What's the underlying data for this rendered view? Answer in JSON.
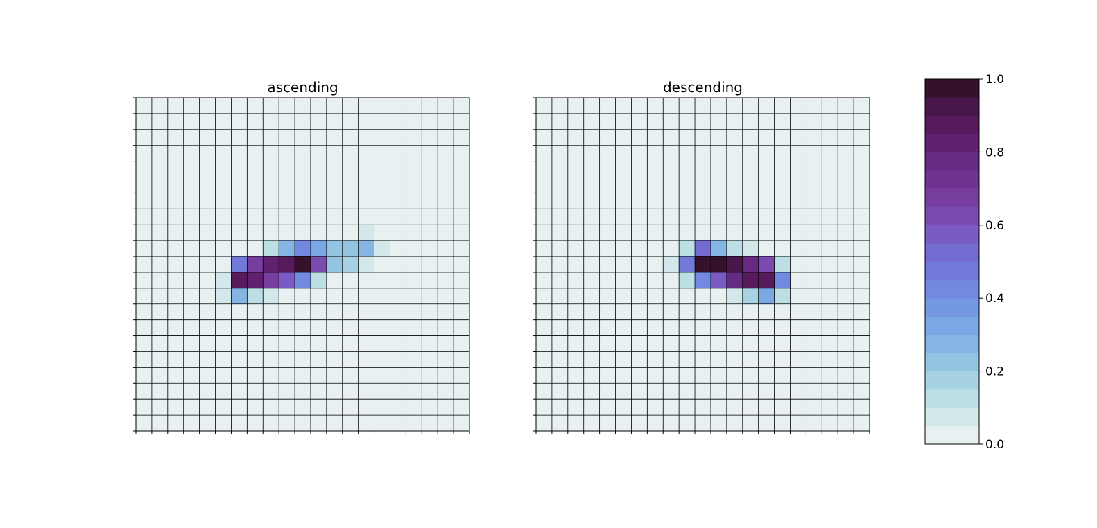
{
  "chart_data": [
    {
      "type": "heatmap",
      "title": "ascending",
      "rows": 21,
      "cols": 21,
      "vmin": 0,
      "vmax": 1,
      "cells": [
        {
          "r": 8,
          "c": 14,
          "v": 0.08
        },
        {
          "r": 9,
          "c": 8,
          "v": 0.12
        },
        {
          "r": 9,
          "c": 9,
          "v": 0.25
        },
        {
          "r": 9,
          "c": 10,
          "v": 0.42
        },
        {
          "r": 9,
          "c": 11,
          "v": 0.33
        },
        {
          "r": 9,
          "c": 12,
          "v": 0.22
        },
        {
          "r": 9,
          "c": 13,
          "v": 0.22
        },
        {
          "r": 9,
          "c": 14,
          "v": 0.25
        },
        {
          "r": 9,
          "c": 15,
          "v": 0.08
        },
        {
          "r": 10,
          "c": 6,
          "v": 0.45
        },
        {
          "r": 10,
          "c": 7,
          "v": 0.65
        },
        {
          "r": 10,
          "c": 8,
          "v": 0.8
        },
        {
          "r": 10,
          "c": 9,
          "v": 0.85
        },
        {
          "r": 10,
          "c": 10,
          "v": 1.0
        },
        {
          "r": 10,
          "c": 11,
          "v": 0.6
        },
        {
          "r": 10,
          "c": 12,
          "v": 0.22
        },
        {
          "r": 10,
          "c": 13,
          "v": 0.15
        },
        {
          "r": 10,
          "c": 14,
          "v": 0.08
        },
        {
          "r": 11,
          "c": 5,
          "v": 0.05
        },
        {
          "r": 11,
          "c": 6,
          "v": 0.85
        },
        {
          "r": 11,
          "c": 7,
          "v": 0.82
        },
        {
          "r": 11,
          "c": 8,
          "v": 0.68
        },
        {
          "r": 11,
          "c": 9,
          "v": 0.55
        },
        {
          "r": 11,
          "c": 10,
          "v": 0.42
        },
        {
          "r": 11,
          "c": 11,
          "v": 0.12
        },
        {
          "r": 12,
          "c": 5,
          "v": 0.05
        },
        {
          "r": 12,
          "c": 6,
          "v": 0.25
        },
        {
          "r": 12,
          "c": 7,
          "v": 0.12
        },
        {
          "r": 12,
          "c": 8,
          "v": 0.05
        }
      ]
    },
    {
      "type": "heatmap",
      "title": "descending",
      "rows": 21,
      "cols": 21,
      "vmin": 0,
      "vmax": 1,
      "cells": [
        {
          "r": 9,
          "c": 9,
          "v": 0.12
        },
        {
          "r": 9,
          "c": 10,
          "v": 0.5
        },
        {
          "r": 9,
          "c": 11,
          "v": 0.25
        },
        {
          "r": 9,
          "c": 12,
          "v": 0.12
        },
        {
          "r": 9,
          "c": 13,
          "v": 0.05
        },
        {
          "r": 10,
          "c": 8,
          "v": 0.05
        },
        {
          "r": 10,
          "c": 9,
          "v": 0.45
        },
        {
          "r": 10,
          "c": 10,
          "v": 1.0
        },
        {
          "r": 10,
          "c": 11,
          "v": 1.0
        },
        {
          "r": 10,
          "c": 12,
          "v": 0.92
        },
        {
          "r": 10,
          "c": 13,
          "v": 0.78
        },
        {
          "r": 10,
          "c": 14,
          "v": 0.6
        },
        {
          "r": 10,
          "c": 15,
          "v": 0.12
        },
        {
          "r": 11,
          "c": 9,
          "v": 0.12
        },
        {
          "r": 11,
          "c": 10,
          "v": 0.42
        },
        {
          "r": 11,
          "c": 11,
          "v": 0.58
        },
        {
          "r": 11,
          "c": 12,
          "v": 0.78
        },
        {
          "r": 11,
          "c": 13,
          "v": 0.88
        },
        {
          "r": 11,
          "c": 14,
          "v": 0.88
        },
        {
          "r": 11,
          "c": 15,
          "v": 0.42
        },
        {
          "r": 12,
          "c": 12,
          "v": 0.08
        },
        {
          "r": 12,
          "c": 13,
          "v": 0.15
        },
        {
          "r": 12,
          "c": 14,
          "v": 0.3
        },
        {
          "r": 12,
          "c": 15,
          "v": 0.12
        }
      ]
    }
  ],
  "colorbar": {
    "levels": 20,
    "tick_values": [
      0.0,
      0.2,
      0.4,
      0.6,
      0.8,
      1.0
    ],
    "tick_labels": [
      "0.0",
      "0.2",
      "0.4",
      "0.6",
      "0.8",
      "1.0"
    ],
    "colors": [
      "#e8f0f1",
      "#d2e8ea",
      "#bcdfe6",
      "#a7d2e3",
      "#93c4e2",
      "#85b6e3",
      "#7aa8e4",
      "#7598e3",
      "#7189e0",
      "#727ad9",
      "#746bd1",
      "#7a5bc4",
      "#7b4caf",
      "#773e9f",
      "#6f3391",
      "#672a82",
      "#5f2170",
      "#561a5d",
      "#48164a",
      "#36112b"
    ]
  }
}
